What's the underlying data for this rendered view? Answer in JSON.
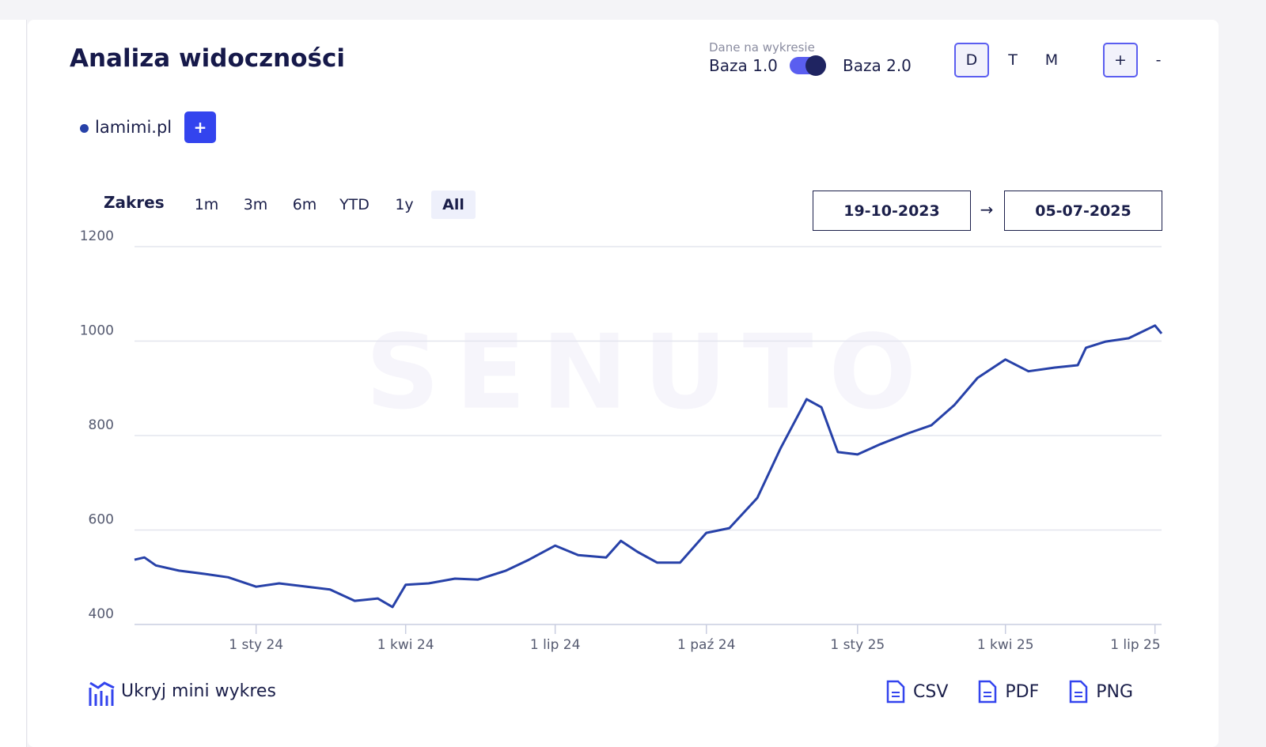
{
  "header": {
    "title": "Analiza widoczności",
    "data_source_label": "Dane na wykresie",
    "base_left": "Baza 1.0",
    "base_right": "Baza 2.0",
    "interval_buttons": [
      "D",
      "T",
      "M"
    ],
    "zoom_in": "+",
    "zoom_out": "-"
  },
  "add_domain": "+",
  "range": {
    "label": "Zakres",
    "buttons": [
      "1m",
      "3m",
      "6m",
      "YTD",
      "1y",
      "All"
    ],
    "active": "All",
    "date_from": "19-10-2023",
    "arrow": "→",
    "date_to": "05-07-2025"
  },
  "footer": {
    "toggle_mini": "Ukryj mini wykres",
    "exports": [
      "CSV",
      "PDF",
      "PNG"
    ]
  },
  "watermark": "SENUTO",
  "chart_data": {
    "type": "line",
    "grid": true,
    "x": [
      "2023-10-19",
      "2023-10-25",
      "2023-11-01",
      "2023-11-15",
      "2023-12-01",
      "2023-12-15",
      "2024-01-01",
      "2024-01-15",
      "2024-02-01",
      "2024-02-15",
      "2024-03-01",
      "2024-03-15",
      "2024-03-24",
      "2024-04-01",
      "2024-04-15",
      "2024-05-01",
      "2024-05-15",
      "2024-06-01",
      "2024-06-15",
      "2024-07-01",
      "2024-07-15",
      "2024-08-01",
      "2024-08-10",
      "2024-08-20",
      "2024-09-01",
      "2024-09-15",
      "2024-10-01",
      "2024-10-15",
      "2024-11-01",
      "2024-11-15",
      "2024-12-01",
      "2024-12-10",
      "2024-12-20",
      "2025-01-01",
      "2025-01-15",
      "2025-02-01",
      "2025-02-15",
      "2025-03-01",
      "2025-03-15",
      "2025-04-01",
      "2025-04-15",
      "2025-05-01",
      "2025-05-15",
      "2025-05-20",
      "2025-06-01",
      "2025-06-15",
      "2025-07-01",
      "2025-07-05"
    ],
    "series": [
      {
        "name": "lamimi.pl",
        "color": "#2741a8",
        "values": [
          537,
          542,
          525,
          514,
          507,
          500,
          480,
          487,
          480,
          474,
          450,
          455,
          437,
          484,
          487,
          497,
          495,
          514,
          537,
          567,
          547,
          542,
          577,
          554,
          531,
          531,
          594,
          604,
          668,
          772,
          877,
          860,
          765,
          760,
          782,
          805,
          822,
          865,
          922,
          961,
          936,
          944,
          949,
          986,
          999,
          1006,
          1033,
          1016
        ]
      }
    ],
    "xlim": [
      "2023-10-19",
      "2025-07-05"
    ],
    "xticks": [
      {
        "value": "2024-01-01",
        "label": "1 sty 24"
      },
      {
        "value": "2024-04-01",
        "label": "1 kwi 24"
      },
      {
        "value": "2024-07-01",
        "label": "1 lip 24"
      },
      {
        "value": "2024-10-01",
        "label": "1 paź 24"
      },
      {
        "value": "2025-01-01",
        "label": "1 sty 25"
      },
      {
        "value": "2025-04-01",
        "label": "1 kwi 25"
      },
      {
        "value": "2025-07-01",
        "label": "1 lip 25"
      }
    ],
    "ylim": [
      400,
      1200
    ],
    "yticks": [
      400,
      600,
      800,
      1000,
      1200
    ]
  }
}
